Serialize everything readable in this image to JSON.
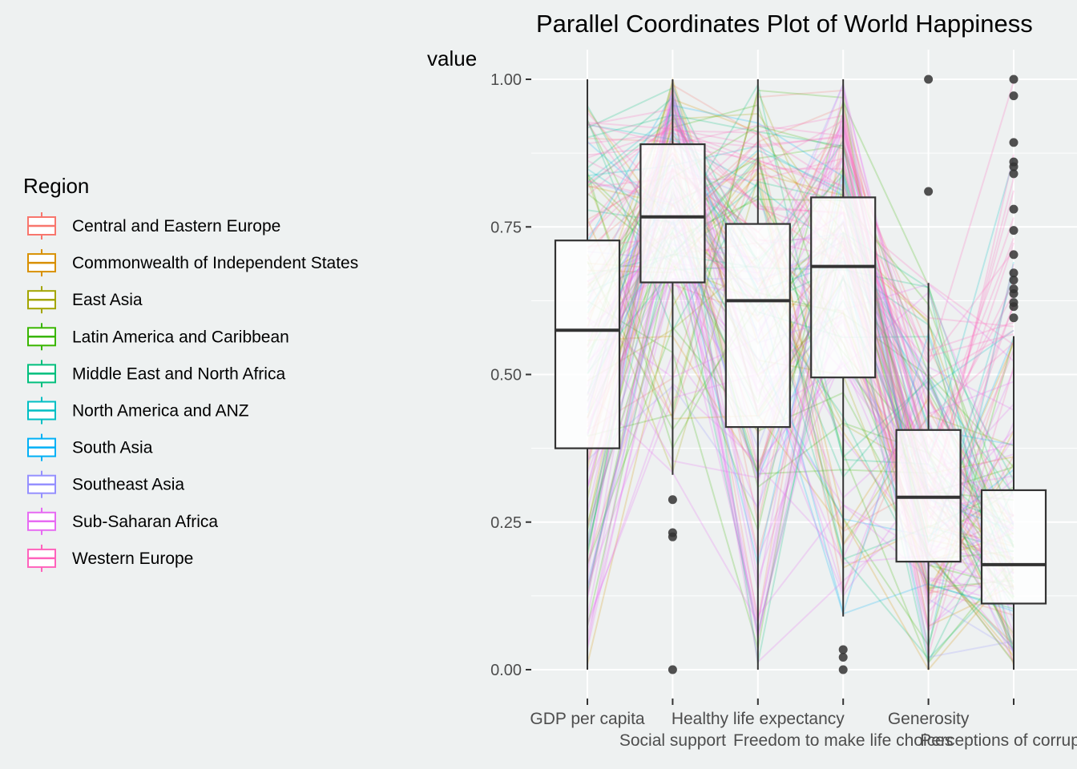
{
  "chart_data": {
    "type": "parallel-coordinates",
    "title": "Parallel Coordinates Plot of World Happiness",
    "ylabel": "value",
    "xlabel": "",
    "ylim": [
      0,
      1
    ],
    "yticks": [
      "0.00",
      "0.25",
      "0.50",
      "0.75",
      "1.00"
    ],
    "categories": [
      "GDP per capita",
      "Social support",
      "Healthy life expectancy",
      "Freedom to make life choices",
      "Generosity",
      "Perceptions of corruption"
    ],
    "boxplots": [
      {
        "name": "GDP per capita",
        "min": 0.0,
        "q1": 0.375,
        "median": 0.575,
        "q3": 0.727,
        "max": 1.0,
        "outliers": []
      },
      {
        "name": "Social support",
        "min": 0.33,
        "q1": 0.656,
        "median": 0.767,
        "q3": 0.89,
        "max": 1.0,
        "outliers": [
          0.0,
          0.225,
          0.232,
          0.288
        ]
      },
      {
        "name": "Healthy life expectancy",
        "min": 0.0,
        "q1": 0.411,
        "median": 0.625,
        "q3": 0.755,
        "max": 1.0,
        "outliers": []
      },
      {
        "name": "Freedom to make life choices",
        "min": 0.09,
        "q1": 0.495,
        "median": 0.683,
        "q3": 0.8,
        "max": 1.0,
        "outliers": [
          0.0,
          0.021,
          0.034
        ]
      },
      {
        "name": "Generosity",
        "min": 0.0,
        "q1": 0.183,
        "median": 0.292,
        "q3": 0.406,
        "max": 0.655,
        "outliers": [
          0.81,
          1.0
        ]
      },
      {
        "name": "Perceptions of corruption",
        "min": 0.0,
        "q1": 0.112,
        "median": 0.178,
        "q3": 0.304,
        "max": 0.565,
        "outliers": [
          0.596,
          0.615,
          0.622,
          0.637,
          0.645,
          0.66,
          0.672,
          0.703,
          0.744,
          0.78,
          0.84,
          0.852,
          0.86,
          0.893,
          0.972,
          1.0
        ]
      }
    ],
    "legend": {
      "title": "Region",
      "position": "left",
      "items": [
        {
          "name": "Central and Eastern Europe",
          "color": "#F8766D"
        },
        {
          "name": "Commonwealth of Independent States",
          "color": "#D89000"
        },
        {
          "name": "East Asia",
          "color": "#A3A500"
        },
        {
          "name": "Latin America and Caribbean",
          "color": "#39B600"
        },
        {
          "name": "Middle East and North Africa",
          "color": "#00BF7D"
        },
        {
          "name": "North America and ANZ",
          "color": "#00BFC4"
        },
        {
          "name": "South Asia",
          "color": "#00B0F6"
        },
        {
          "name": "Southeast Asia",
          "color": "#9590FF"
        },
        {
          "name": "Sub-Saharan Africa",
          "color": "#E76BF3"
        },
        {
          "name": "Western Europe",
          "color": "#FF62BC"
        }
      ]
    },
    "grid": true
  }
}
